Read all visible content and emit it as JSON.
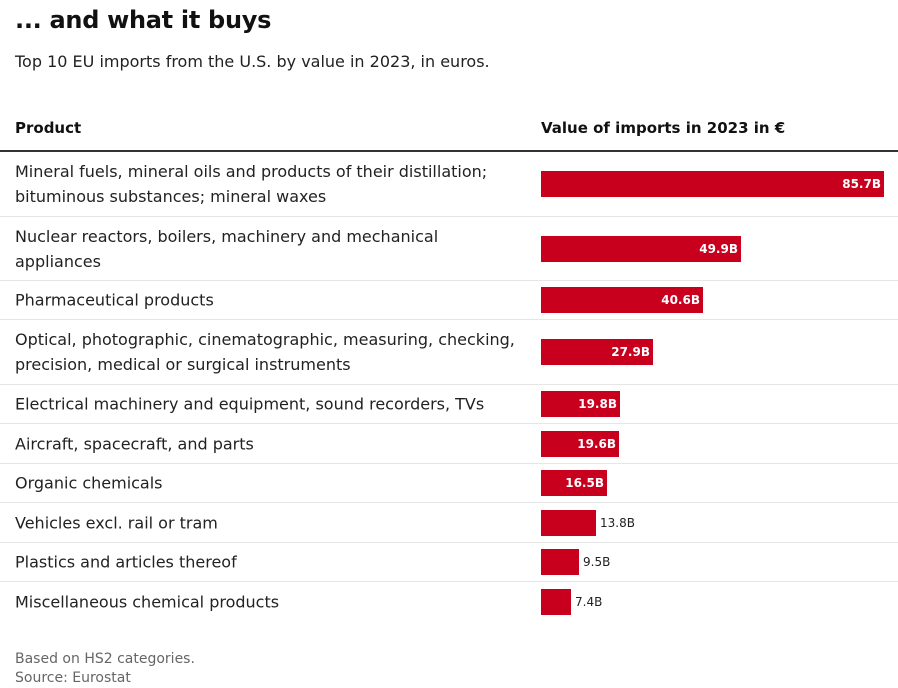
{
  "title": "... and what it buys",
  "subtitle": "Top 10 EU imports from the U.S. by value in 2023, in euros.",
  "columns": {
    "product": "Product",
    "value": "Value of imports in 2023 in €"
  },
  "colors": {
    "bar": "#c8001e"
  },
  "chart_data": {
    "type": "bar",
    "orientation": "horizontal",
    "unit": "billion €",
    "categories": [
      "Mineral fuels, mineral oils and products of their distillation; bituminous substances; mineral waxes",
      "Nuclear reactors, boilers, machinery and mechanical appliances",
      "Pharmaceutical products",
      "Optical, photographic, cinematographic, measuring, checking, precision, medical or surgical instruments",
      "Electrical machinery and equipment, sound recorders, TVs",
      "Aircraft, spacecraft, and parts",
      "Organic chemicals",
      "Vehicles excl. rail or tram",
      "Plastics and articles thereof",
      "Miscellaneous chemical products"
    ],
    "values": [
      85.7,
      49.9,
      40.6,
      27.9,
      19.8,
      19.6,
      16.5,
      13.8,
      9.5,
      7.4
    ],
    "value_labels": [
      "85.7B",
      "49.9B",
      "40.6B",
      "27.9B",
      "19.8B",
      "19.6B",
      "16.5B",
      "13.8B",
      "9.5B",
      "7.4B"
    ]
  },
  "footer": {
    "note": "Based on HS2 categories.",
    "source": "Source: Eurostat"
  }
}
